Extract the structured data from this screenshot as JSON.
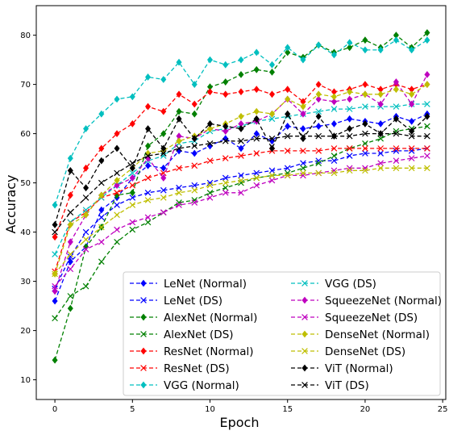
{
  "chart_data": {
    "type": "line",
    "title": "",
    "xlabel": "Epoch",
    "ylabel": "Accuracy",
    "xlim": [
      -1.2,
      25.2
    ],
    "ylim": [
      6,
      86
    ],
    "xticks": [
      0,
      5,
      10,
      15,
      20,
      25
    ],
    "yticks": [
      10,
      20,
      30,
      40,
      50,
      60,
      70,
      80
    ],
    "grid": false,
    "legend_position": "lower-right",
    "legend_columns": 2,
    "x": [
      0,
      1,
      2,
      3,
      4,
      5,
      6,
      7,
      8,
      9,
      10,
      11,
      12,
      13,
      14,
      15,
      16,
      17,
      18,
      19,
      20,
      21,
      22,
      23,
      24
    ],
    "series": [
      {
        "name": "LeNet (Normal)",
        "color": "#0000ff",
        "marker": "diamond",
        "values": [
          26,
          34,
          37,
          44.5,
          47,
          51,
          53.5,
          53,
          56.5,
          56,
          57.5,
          59,
          57,
          60,
          58.5,
          61.5,
          61,
          61.5,
          62,
          63,
          62.5,
          62,
          63.5,
          62.5,
          64
        ]
      },
      {
        "name": "LeNet (DS)",
        "color": "#0000ff",
        "marker": "x",
        "values": [
          28.5,
          35,
          40,
          43,
          45.5,
          47,
          48,
          48.5,
          49,
          49.5,
          50,
          51,
          51.5,
          52,
          52.5,
          53,
          54,
          54.5,
          54.5,
          55.5,
          56,
          56,
          56.5,
          56.5,
          57
        ]
      },
      {
        "name": "AlexNet (Normal)",
        "color": "#008000",
        "marker": "diamond",
        "values": [
          14,
          24.5,
          37,
          41,
          47.5,
          48,
          57.5,
          60,
          64.5,
          64,
          69.5,
          70.5,
          72,
          73,
          72.5,
          76.5,
          75.5,
          78,
          76.5,
          77.5,
          79,
          77.5,
          80,
          77.5,
          80.5
        ]
      },
      {
        "name": "AlexNet (DS)",
        "color": "#008000",
        "marker": "x",
        "values": [
          22.5,
          27,
          29,
          34,
          38,
          40.5,
          42,
          44,
          46,
          46.5,
          48,
          49,
          50,
          51,
          51.5,
          52,
          53,
          54,
          55.5,
          57,
          58,
          59,
          60.5,
          61,
          61.5
        ]
      },
      {
        "name": "ResNet (Normal)",
        "color": "#ff0000",
        "marker": "diamond",
        "values": [
          39,
          47.5,
          53,
          57,
          60,
          62,
          65.5,
          64.5,
          68,
          66,
          68.5,
          68,
          68.5,
          69,
          68,
          69,
          66.5,
          70,
          68.5,
          69,
          70,
          69,
          70,
          69,
          70
        ]
      },
      {
        "name": "ResNet (DS)",
        "color": "#ff0000",
        "marker": "x",
        "values": [
          32,
          42,
          44,
          47,
          48,
          49.5,
          51,
          52,
          53,
          53.5,
          54.5,
          55,
          55.5,
          56,
          56.5,
          56.5,
          56.5,
          56.5,
          57,
          57,
          57,
          57,
          57,
          57,
          57
        ]
      },
      {
        "name": "VGG (Normal)",
        "color": "#00bfbf",
        "marker": "diamond",
        "values": [
          45.5,
          55,
          61,
          64,
          67,
          67.5,
          71.5,
          71,
          74.5,
          70,
          75,
          74,
          75,
          76.5,
          74,
          77.5,
          75,
          78,
          76,
          78.5,
          77,
          77,
          79,
          77,
          79
        ]
      },
      {
        "name": "VGG (DS)",
        "color": "#00bfbf",
        "marker": "x",
        "values": [
          35.5,
          42,
          44.5,
          47,
          49.5,
          52,
          54.5,
          55.5,
          58,
          58.5,
          60.5,
          61,
          61.5,
          62.5,
          63,
          63.5,
          64,
          64.5,
          65,
          65,
          65.5,
          65.5,
          65.5,
          66,
          66
        ]
      },
      {
        "name": "SqueezeNet (Normal)",
        "color": "#bf00bf",
        "marker": "diamond",
        "values": [
          28,
          38,
          43.5,
          47.5,
          49.5,
          51,
          55,
          51,
          59.5,
          59,
          61,
          60.5,
          62,
          62.5,
          64,
          67,
          64,
          67,
          66.5,
          67,
          68,
          66,
          70.5,
          66,
          72
        ]
      },
      {
        "name": "SqueezeNet (DS)",
        "color": "#bf00bf",
        "marker": "x",
        "values": [
          29,
          32.5,
          36.5,
          38,
          40.5,
          42,
          43,
          44,
          45.5,
          46,
          47,
          48,
          48,
          49.5,
          50.5,
          51.5,
          51.5,
          52,
          52.5,
          53,
          53,
          54,
          54.5,
          55,
          55.5
        ]
      },
      {
        "name": "DenseNet (Normal)",
        "color": "#bfbf00",
        "marker": "diamond",
        "values": [
          31.5,
          41.5,
          43.5,
          47.5,
          50.5,
          53,
          56,
          56.5,
          58.5,
          59.5,
          61,
          62,
          63.5,
          64.5,
          64,
          67,
          65.5,
          68,
          67.5,
          68.5,
          68,
          68,
          69,
          68,
          70
        ]
      },
      {
        "name": "DenseNet (DS)",
        "color": "#bfbf00",
        "marker": "x",
        "values": [
          31.5,
          35.5,
          38.5,
          41,
          43.5,
          45.5,
          46.5,
          47,
          48,
          48.5,
          49.5,
          50,
          50.5,
          51,
          51.5,
          51.5,
          52,
          52,
          52,
          52.5,
          52.5,
          53,
          53,
          53,
          53
        ]
      },
      {
        "name": "ViT (Normal)",
        "color": "#000000",
        "marker": "diamond",
        "values": [
          41.5,
          52.5,
          49,
          54.5,
          57,
          53,
          61,
          57,
          63,
          59,
          62,
          61.5,
          61,
          63,
          57,
          64,
          59,
          63.5,
          59.5,
          61,
          62,
          60,
          63,
          60.5,
          63.5
        ]
      },
      {
        "name": "ViT (DS)",
        "color": "#000000",
        "marker": "x",
        "values": [
          40,
          44,
          47,
          50,
          52,
          54,
          55.5,
          56,
          57,
          57.5,
          58,
          58.5,
          58.5,
          59,
          59,
          59.5,
          59.5,
          59.5,
          59.5,
          59.5,
          60,
          60,
          60,
          59.5,
          59.5
        ]
      }
    ]
  }
}
